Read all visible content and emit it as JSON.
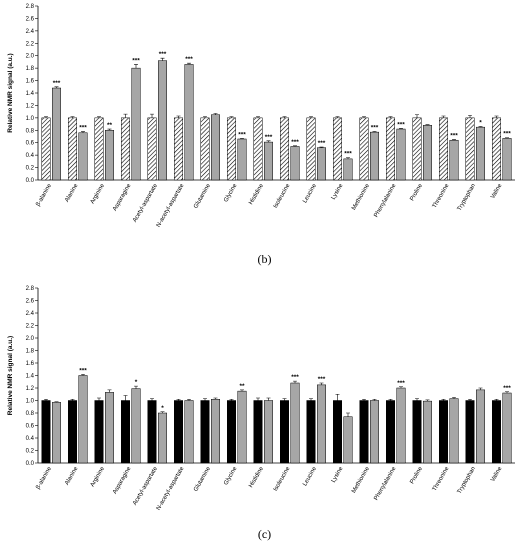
{
  "chart_data": [
    {
      "type": "bar",
      "y_label": "Relative NMR signal  (a.u.)",
      "caption": "(b)",
      "categories": [
        "β-alanine",
        "Alanine",
        "Arginine",
        "Asparagine",
        "Acetyl-aspartate",
        "N-acetyl-aspartate",
        "Glutamine",
        "Glycine",
        "Histidine",
        "Isoleucine",
        "Leucine",
        "Lysine",
        "Methionine",
        "Phenylalanine",
        "Proline",
        "Threonine",
        "Tryptophan",
        "Valine"
      ],
      "series": [
        {
          "color": "#000000",
          "hatch": true,
          "values": [
            1,
            1,
            1,
            1,
            1,
            1,
            1,
            1,
            1,
            1,
            1,
            1,
            1,
            1,
            1,
            1,
            1,
            1
          ],
          "errors": [
            0.02,
            0.02,
            0.02,
            0.06,
            0.06,
            0.03,
            0.02,
            0.02,
            0.02,
            0.02,
            0.02,
            0.02,
            0.02,
            0.02,
            0.05,
            0.03,
            0.04,
            0.03
          ]
        },
        {
          "color": "#a6a6a6",
          "hatch": false,
          "values": [
            1.48,
            0.76,
            0.8,
            1.8,
            1.92,
            1.86,
            1.05,
            0.66,
            0.61,
            0.54,
            0.52,
            0.34,
            0.77,
            0.82,
            0.88,
            0.64,
            0.85,
            0.67
          ],
          "errors": [
            0.02,
            0.02,
            0.02,
            0.06,
            0.04,
            0.02,
            0.02,
            0.01,
            0.02,
            0.01,
            0.01,
            0.02,
            0.01,
            0.01,
            0.01,
            0.01,
            0.01,
            0.01
          ]
        }
      ],
      "annotations": [
        "***",
        "***",
        "**",
        "***",
        "***",
        "***",
        null,
        "***",
        "***",
        "***",
        "***",
        "***",
        "***",
        "***",
        null,
        "***",
        "*",
        "***"
      ],
      "ylim": [
        0,
        2.8
      ],
      "yticks": [
        {
          "value": 0,
          "label": "0.0"
        },
        0.2,
        0.4,
        0.6,
        0.8,
        {
          "value": 1,
          "label": "1.0"
        },
        1.2,
        1.4,
        1.6,
        1.8,
        {
          "value": 2,
          "label": "2.0"
        },
        2.2,
        2.4,
        2.6,
        2.8
      ]
    },
    {
      "type": "bar",
      "y_label": "Relative NMR signal  (a.u.)",
      "caption": "(c)",
      "categories": [
        "β-alanine",
        "Alanine",
        "Arginine",
        "Asparagine",
        "Acetyl-aspartate",
        "N-acetyl-aspartate",
        "Glutamine",
        "Glycine",
        "Histidine",
        "Isoleucine",
        "Leucine",
        "Lysine",
        "Methionine",
        "Phenylalanine",
        "Proline",
        "Threonine",
        "Tryptophan",
        "Valine"
      ],
      "series": [
        {
          "color": "#000000",
          "hatch": false,
          "values": [
            1,
            1,
            1,
            1,
            1,
            1,
            1,
            1,
            1,
            1,
            1,
            1,
            1,
            1,
            1,
            1,
            1,
            1
          ],
          "errors": [
            0.02,
            0.02,
            0.04,
            0.08,
            0.03,
            0.02,
            0.03,
            0.02,
            0.04,
            0.03,
            0.03,
            0.1,
            0.02,
            0.02,
            0.03,
            0.02,
            0.02,
            0.02
          ]
        },
        {
          "color": "#a6a6a6",
          "hatch": false,
          "values": [
            0.97,
            1.4,
            1.13,
            1.19,
            0.8,
            1.0,
            1.02,
            1.15,
            1.0,
            1.28,
            1.25,
            0.74,
            1.0,
            1.2,
            0.99,
            1.03,
            1.17,
            1.12
          ],
          "errors": [
            0.01,
            0.02,
            0.04,
            0.04,
            0.02,
            0.02,
            0.02,
            0.02,
            0.04,
            0.03,
            0.03,
            0.06,
            0.02,
            0.02,
            0.02,
            0.02,
            0.03,
            0.02
          ]
        }
      ],
      "annotations": [
        null,
        "***",
        null,
        "*",
        "*",
        null,
        null,
        "**",
        null,
        "***",
        "***",
        null,
        null,
        "***",
        null,
        null,
        null,
        "***"
      ],
      "ylim": [
        0,
        2.8
      ],
      "yticks": [
        {
          "value": 0,
          "label": "0.0"
        },
        0.2,
        0.4,
        0.6,
        0.8,
        {
          "value": 1,
          "label": "1.0"
        },
        1.2,
        1.4,
        1.6,
        1.8,
        {
          "value": 2,
          "label": "2.0"
        },
        2.2,
        2.4,
        2.6,
        2.8
      ]
    }
  ]
}
